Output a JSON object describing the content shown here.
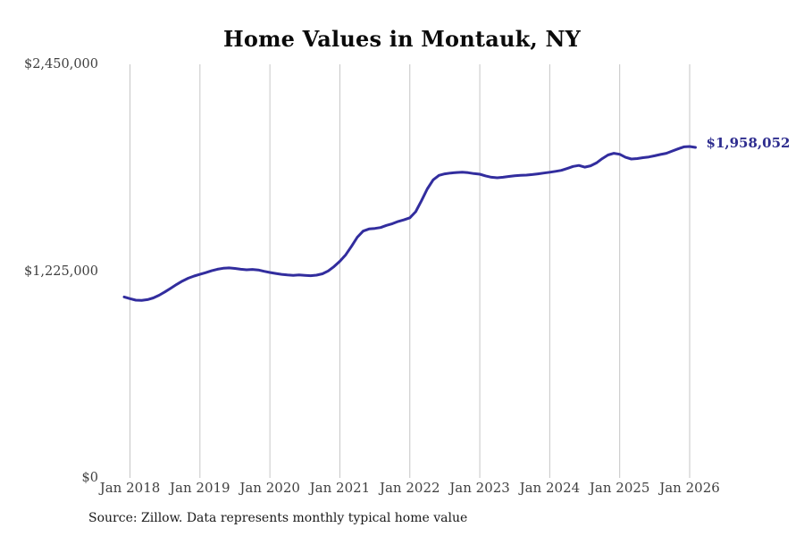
{
  "title": "Home Values in Montauk, NY",
  "source_note": "Source: Zillow. Data represents monthly typical home value",
  "colors": {
    "background": "#ffffff",
    "line": "#322d9e",
    "end_label": "#2e2d8f",
    "grid": "#c6c6c6",
    "axis_text": "#404040",
    "title": "#0a0a0a",
    "source_text": "#1a1a1a"
  },
  "chart_data": {
    "type": "line",
    "title": "Home Values in Montauk, NY",
    "xlabel": "",
    "ylabel": "",
    "ylim": [
      0,
      2450000
    ],
    "grid": "vertical-only",
    "legend": "none",
    "y_ticks": [
      {
        "value": 0,
        "label": "$0"
      },
      {
        "value": 1225000,
        "label": "$1,225,000"
      },
      {
        "value": 2450000,
        "label": "$2,450,000"
      }
    ],
    "x_ticks": [
      "Jan 2018",
      "Jan 2019",
      "Jan 2020",
      "Jan 2021",
      "Jan 2022",
      "Jan 2023",
      "Jan 2024",
      "Jan 2025",
      "Jan 2026"
    ],
    "series": [
      {
        "name": "Typical home value",
        "final_value": 1958052,
        "final_value_label": "$1,958,052",
        "x": [
          "2017-12",
          "2018-01",
          "2018-02",
          "2018-03",
          "2018-04",
          "2018-05",
          "2018-06",
          "2018-07",
          "2018-08",
          "2018-09",
          "2018-10",
          "2018-11",
          "2018-12",
          "2019-01",
          "2019-02",
          "2019-03",
          "2019-04",
          "2019-05",
          "2019-06",
          "2019-07",
          "2019-08",
          "2019-09",
          "2019-10",
          "2019-11",
          "2019-12",
          "2020-01",
          "2020-02",
          "2020-03",
          "2020-04",
          "2020-05",
          "2020-06",
          "2020-07",
          "2020-08",
          "2020-09",
          "2020-10",
          "2020-11",
          "2020-12",
          "2021-01",
          "2021-02",
          "2021-03",
          "2021-04",
          "2021-05",
          "2021-06",
          "2021-07",
          "2021-08",
          "2021-09",
          "2021-10",
          "2021-11",
          "2021-12",
          "2022-01",
          "2022-02",
          "2022-03",
          "2022-04",
          "2022-05",
          "2022-06",
          "2022-07",
          "2022-08",
          "2022-09",
          "2022-10",
          "2022-11",
          "2022-12",
          "2023-01",
          "2023-02",
          "2023-03",
          "2023-04",
          "2023-05",
          "2023-06",
          "2023-07",
          "2023-08",
          "2023-09",
          "2023-10",
          "2023-11",
          "2023-12",
          "2024-01",
          "2024-02",
          "2024-03",
          "2024-04",
          "2024-05",
          "2024-06",
          "2024-07",
          "2024-08",
          "2024-09",
          "2024-10",
          "2024-11",
          "2024-12",
          "2025-01",
          "2025-02",
          "2025-03",
          "2025-04",
          "2025-05",
          "2025-06",
          "2025-07",
          "2025-08",
          "2025-09",
          "2025-10",
          "2025-11",
          "2025-12",
          "2026-01",
          "2026-02"
        ],
        "values": [
          1072000,
          1062000,
          1053000,
          1052000,
          1056000,
          1066000,
          1082000,
          1102000,
          1124000,
          1146000,
          1166000,
          1183000,
          1196000,
          1206000,
          1216000,
          1227000,
          1236000,
          1242000,
          1244000,
          1241000,
          1236000,
          1233000,
          1235000,
          1232000,
          1224000,
          1217000,
          1211000,
          1206000,
          1202000,
          1200000,
          1202000,
          1200000,
          1198000,
          1201000,
          1209000,
          1226000,
          1252000,
          1283000,
          1322000,
          1372000,
          1426000,
          1462000,
          1475000,
          1478000,
          1483000,
          1496000,
          1506000,
          1519000,
          1529000,
          1541000,
          1577000,
          1642000,
          1712000,
          1766000,
          1792000,
          1801000,
          1806000,
          1809000,
          1811000,
          1808000,
          1803000,
          1799000,
          1789000,
          1781000,
          1778000,
          1781000,
          1786000,
          1790000,
          1792000,
          1794000,
          1797000,
          1801000,
          1806000,
          1811000,
          1816000,
          1822000,
          1833000,
          1845000,
          1851000,
          1841000,
          1849000,
          1866000,
          1891000,
          1913000,
          1923000,
          1917000,
          1899000,
          1889000,
          1892000,
          1897000,
          1901000,
          1908000,
          1916000,
          1923000,
          1936000,
          1949000,
          1961000,
          1963000,
          1958052
        ]
      }
    ]
  }
}
